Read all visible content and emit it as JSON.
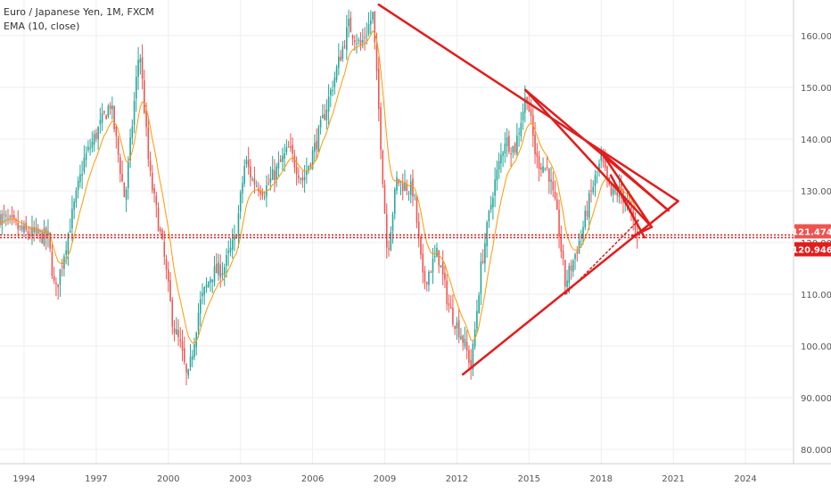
{
  "legend": {
    "symbol_line": "Euro / Japanese Yen, 1M, FXCM",
    "indicator_line": "EMA (10, close)"
  },
  "price_labels": {
    "upper": "121.474",
    "lower": "120.946"
  },
  "colors": {
    "up": "#26a69a",
    "down": "#ef5350",
    "ema": "#ff9800",
    "drawing": "#e31c1c",
    "price_tag_upper": "#ef5350",
    "price_tag_lower": "#e31c1c",
    "grid": "#eeeeee",
    "axis_text": "#555555"
  },
  "chart_data": {
    "type": "candlestick",
    "symbol": "Euro / Japanese Yen",
    "interval": "1M",
    "source": "FXCM",
    "indicators": [
      "EMA (10, close)"
    ],
    "xlim": [
      1993.0,
      2026.0
    ],
    "ylim": [
      77,
      166
    ],
    "x_ticks": [
      "1994",
      "1997",
      "2000",
      "2003",
      "2006",
      "2009",
      "2012",
      "2015",
      "2018",
      "2021",
      "2024"
    ],
    "y_ticks": [
      "80.000",
      "90.000",
      "100.000",
      "110.000",
      "120.000",
      "130.000",
      "140.000",
      "150.000",
      "160.000"
    ],
    "grid": true,
    "approx_close_path": [
      [
        1993.0,
        125
      ],
      [
        1994.0,
        122
      ],
      [
        1995.0,
        121
      ],
      [
        1995.3,
        110
      ],
      [
        1995.8,
        121
      ],
      [
        1996.5,
        136
      ],
      [
        1997.2,
        143
      ],
      [
        1997.6,
        147
      ],
      [
        1998.2,
        128
      ],
      [
        1998.8,
        158
      ],
      [
        1999.2,
        134
      ],
      [
        1999.8,
        118
      ],
      [
        2000.2,
        104
      ],
      [
        2000.5,
        100
      ],
      [
        2000.8,
        93
      ],
      [
        2001.3,
        108
      ],
      [
        2001.8,
        114
      ],
      [
        2002.3,
        115
      ],
      [
        2002.8,
        121
      ],
      [
        2003.2,
        136
      ],
      [
        2003.5,
        132
      ],
      [
        2004.0,
        130
      ],
      [
        2004.5,
        134
      ],
      [
        2005.0,
        138
      ],
      [
        2005.6,
        132
      ],
      [
        2006.2,
        140
      ],
      [
        2006.8,
        150
      ],
      [
        2007.5,
        162
      ],
      [
        2008.0,
        158
      ],
      [
        2008.5,
        164
      ],
      [
        2008.8,
        142
      ],
      [
        2009.1,
        118
      ],
      [
        2009.5,
        132
      ],
      [
        2010.2,
        130
      ],
      [
        2010.6,
        112
      ],
      [
        2011.2,
        118
      ],
      [
        2011.7,
        107
      ],
      [
        2012.2,
        102
      ],
      [
        2012.6,
        96
      ],
      [
        2013.0,
        115
      ],
      [
        2013.5,
        130
      ],
      [
        2014.0,
        140
      ],
      [
        2014.4,
        138
      ],
      [
        2014.9,
        149
      ],
      [
        2015.3,
        136
      ],
      [
        2015.8,
        134
      ],
      [
        2016.2,
        124
      ],
      [
        2016.5,
        112
      ],
      [
        2016.8,
        116
      ],
      [
        2017.2,
        122
      ],
      [
        2017.6,
        130
      ],
      [
        2018.0,
        136
      ],
      [
        2018.4,
        129
      ],
      [
        2018.8,
        130
      ],
      [
        2019.2,
        126
      ],
      [
        2019.5,
        121
      ]
    ],
    "annotations": [
      {
        "type": "trendline",
        "from": [
          2008.75,
          166
        ],
        "to": [
          2021.2,
          128
        ]
      },
      {
        "type": "trendline",
        "from": [
          2012.25,
          94.5
        ],
        "to": [
          2021.2,
          128
        ]
      },
      {
        "type": "trendline",
        "from": [
          2014.85,
          149.5
        ],
        "to": [
          2020.1,
          123
        ]
      },
      {
        "type": "trendline",
        "from": [
          2014.85,
          149.5
        ],
        "to": [
          2020.8,
          126.2
        ]
      },
      {
        "type": "trendline",
        "from": [
          2018.0,
          137.5
        ],
        "to": [
          2020.8,
          126.2
        ]
      },
      {
        "type": "trendline",
        "from": [
          2018.0,
          137.5
        ],
        "to": [
          2020.1,
          123
        ]
      },
      {
        "type": "trendline",
        "from": [
          2018.4,
          133
        ],
        "to": [
          2019.8,
          121
        ]
      },
      {
        "type": "trendline",
        "from": [
          2019.3,
          121.2
        ],
        "to": [
          2020.1,
          123
        ]
      },
      {
        "type": "trendline-dotted",
        "from": [
          2016.5,
          110
        ],
        "to": [
          2019.6,
          124.5
        ]
      },
      {
        "type": "hline-dotted",
        "y": 121.474
      },
      {
        "type": "hline-dotted",
        "y": 120.946
      }
    ]
  }
}
